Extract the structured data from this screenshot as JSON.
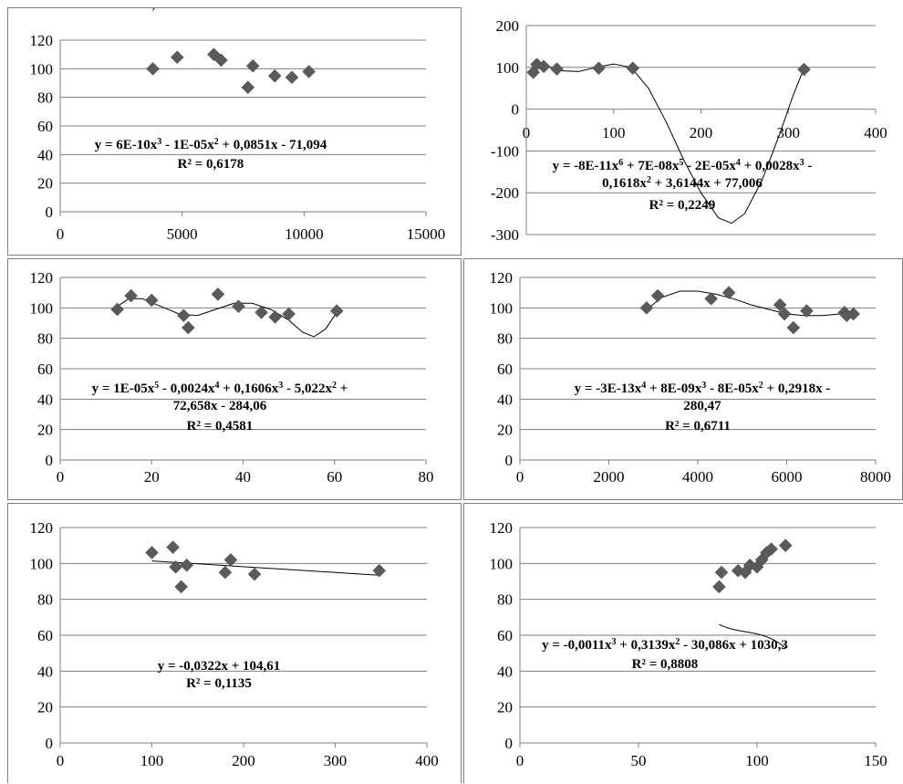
{
  "colors": {
    "marker": "#5a5a5a",
    "grid": "#7f7f7f",
    "trend": "#000000",
    "border": "#7f7f7f"
  },
  "chart_data": [
    {
      "type": "scatter",
      "title": "",
      "xlabel": "",
      "ylabel": "",
      "xlim": [
        0,
        15000
      ],
      "ylim": [
        0,
        120
      ],
      "xticks": [
        0,
        5000,
        10000,
        15000
      ],
      "yticks": [
        0,
        20,
        40,
        60,
        80,
        100,
        120
      ],
      "grid": true,
      "legend": "none",
      "series": [
        {
          "points": [
            [
              3800,
              100
            ],
            [
              4800,
              108
            ],
            [
              6300,
              110
            ],
            [
              6600,
              106
            ],
            [
              7700,
              87
            ],
            [
              7900,
              102
            ],
            [
              8800,
              95
            ],
            [
              9500,
              94
            ],
            [
              10200,
              98
            ]
          ]
        }
      ],
      "trendline": {
        "type": "polynomial",
        "coefficients": [
          -71.094,
          0.0851,
          -1e-05,
          6e-10
        ]
      },
      "equation_lines": [
        {
          "parts": [
            [
              "y = 6E-10x",
              ""
            ],
            [
              "3",
              "sup"
            ],
            [
              " - 1E-05x",
              ""
            ],
            [
              "2",
              "sup"
            ],
            [
              " + 0,0851x - 71,094",
              ""
            ]
          ]
        }
      ],
      "r2": "R² = 0,6178"
    },
    {
      "type": "scatter",
      "title": "",
      "xlabel": "",
      "ylabel": "",
      "xlim": [
        0,
        400
      ],
      "ylim": [
        -300,
        200
      ],
      "xticks": [
        0,
        100,
        200,
        300,
        400
      ],
      "yticks": [
        -300,
        -200,
        -100,
        0,
        100,
        200
      ],
      "grid": true,
      "legend": "none",
      "series": [
        {
          "points": [
            [
              8,
              88
            ],
            [
              12,
              107
            ],
            [
              20,
              102
            ],
            [
              35,
              96
            ],
            [
              83,
              98
            ],
            [
              122,
              98
            ],
            [
              318,
              95
            ]
          ]
        }
      ],
      "trendline": {
        "type": "polynomial-6",
        "shape_points": [
          [
            8,
            92
          ],
          [
            20,
            105
          ],
          [
            40,
            92
          ],
          [
            60,
            90
          ],
          [
            80,
            100
          ],
          [
            100,
            108
          ],
          [
            120,
            100
          ],
          [
            140,
            50
          ],
          [
            160,
            -30
          ],
          [
            180,
            -120
          ],
          [
            200,
            -200
          ],
          [
            220,
            -260
          ],
          [
            235,
            -273
          ],
          [
            250,
            -250
          ],
          [
            270,
            -170
          ],
          [
            290,
            -60
          ],
          [
            305,
            30
          ],
          [
            318,
            98
          ]
        ]
      },
      "equation_lines": [
        {
          "parts": [
            [
              "y = -8E-11x",
              ""
            ],
            [
              "6",
              "sup"
            ],
            [
              " + 7E-08x",
              ""
            ],
            [
              "5",
              "sup"
            ],
            [
              " - 2E-05x",
              ""
            ],
            [
              "4",
              "sup"
            ],
            [
              " + 0,0028x",
              ""
            ],
            [
              "3",
              "sup"
            ],
            [
              " -",
              ""
            ]
          ]
        },
        {
          "parts": [
            [
              "0,1618x",
              ""
            ],
            [
              "2",
              "sup"
            ],
            [
              " + 3,6144x + 77,006",
              ""
            ]
          ]
        }
      ],
      "r2": "R² = 0,2249"
    },
    {
      "type": "scatter",
      "title": "",
      "xlabel": "",
      "ylabel": "",
      "xlim": [
        0,
        80
      ],
      "ylim": [
        0,
        120
      ],
      "xticks": [
        0,
        20,
        40,
        60,
        80
      ],
      "yticks": [
        0,
        20,
        40,
        60,
        80,
        100,
        120
      ],
      "grid": true,
      "legend": "none",
      "series": [
        {
          "points": [
            [
              12.5,
              99
            ],
            [
              15.5,
              108
            ],
            [
              20,
              105
            ],
            [
              27,
              95
            ],
            [
              28,
              87
            ],
            [
              34.5,
              109
            ],
            [
              39,
              101
            ],
            [
              44,
              97
            ],
            [
              47,
              94
            ],
            [
              50,
              96
            ],
            [
              60.5,
              98
            ]
          ]
        }
      ],
      "trendline": {
        "type": "polynomial-5",
        "shape_points": [
          [
            12.5,
            101
          ],
          [
            15,
            106
          ],
          [
            18,
            106
          ],
          [
            22,
            101
          ],
          [
            26,
            96
          ],
          [
            30,
            95
          ],
          [
            34,
            99
          ],
          [
            38,
            103
          ],
          [
            42,
            103
          ],
          [
            46,
            99
          ],
          [
            50,
            92
          ],
          [
            53,
            84
          ],
          [
            55.5,
            81
          ],
          [
            58,
            86
          ],
          [
            60.5,
            97
          ]
        ]
      },
      "equation_lines": [
        {
          "parts": [
            [
              "y = 1E-05x",
              ""
            ],
            [
              "5",
              "sup"
            ],
            [
              " - 0,0024x",
              ""
            ],
            [
              "4",
              "sup"
            ],
            [
              " + 0,1606x",
              ""
            ],
            [
              "3",
              "sup"
            ],
            [
              " - 5,022x",
              ""
            ],
            [
              "2",
              "sup"
            ],
            [
              " +",
              ""
            ]
          ]
        },
        {
          "parts": [
            [
              "72,658x - 284,06",
              ""
            ]
          ]
        }
      ],
      "r2": "R² = 0,4581"
    },
    {
      "type": "scatter",
      "title": "",
      "xlabel": "",
      "ylabel": "",
      "xlim": [
        0,
        8000
      ],
      "ylim": [
        0,
        120
      ],
      "xticks": [
        0,
        2000,
        4000,
        6000,
        8000
      ],
      "yticks": [
        0,
        20,
        40,
        60,
        80,
        100,
        120
      ],
      "grid": true,
      "legend": "none",
      "series": [
        {
          "points": [
            [
              2850,
              100
            ],
            [
              3100,
              108
            ],
            [
              4300,
              106
            ],
            [
              4700,
              110
            ],
            [
              5850,
              102
            ],
            [
              5950,
              96
            ],
            [
              6150,
              87
            ],
            [
              6450,
              98
            ],
            [
              7300,
              97
            ],
            [
              7350,
              95
            ],
            [
              7500,
              96
            ]
          ]
        }
      ],
      "trendline": {
        "type": "polynomial-4",
        "shape_points": [
          [
            2850,
            99
          ],
          [
            3200,
            107
          ],
          [
            3600,
            111
          ],
          [
            4000,
            111
          ],
          [
            4400,
            109
          ],
          [
            4800,
            106
          ],
          [
            5200,
            102
          ],
          [
            5600,
            99
          ],
          [
            6000,
            96
          ],
          [
            6400,
            95
          ],
          [
            6800,
            95
          ],
          [
            7200,
            96
          ],
          [
            7500,
            98
          ]
        ]
      },
      "equation_lines": [
        {
          "parts": [
            [
              "y = -3E-13x",
              ""
            ],
            [
              "4",
              "sup"
            ],
            [
              " + 8E-09x",
              ""
            ],
            [
              "3",
              "sup"
            ],
            [
              " - 8E-05x",
              ""
            ],
            [
              "2",
              "sup"
            ],
            [
              " + 0,2918x -",
              ""
            ]
          ]
        },
        {
          "parts": [
            [
              "280,47",
              ""
            ]
          ]
        }
      ],
      "r2": "R² = 0,6711"
    },
    {
      "type": "scatter",
      "title": "",
      "xlabel": "",
      "ylabel": "",
      "xlim": [
        0,
        400
      ],
      "ylim": [
        0,
        120
      ],
      "xticks": [
        0,
        100,
        200,
        300,
        400
      ],
      "yticks": [
        0,
        20,
        40,
        60,
        80,
        100,
        120
      ],
      "grid": true,
      "legend": "none",
      "series": [
        {
          "points": [
            [
              100,
              106
            ],
            [
              123,
              109
            ],
            [
              126,
              98
            ],
            [
              132,
              87
            ],
            [
              138,
              99
            ],
            [
              180,
              95
            ],
            [
              186,
              102
            ],
            [
              212,
              94
            ],
            [
              348,
              96
            ]
          ]
        }
      ],
      "trendline": {
        "type": "linear",
        "slope": -0.0322,
        "intercept": 104.61,
        "x_range": [
          100,
          348
        ]
      },
      "equation_lines": [
        {
          "parts": [
            [
              "y = -0,0322x + 104,61",
              ""
            ]
          ]
        }
      ],
      "r2": "R² = 0,1135"
    },
    {
      "type": "scatter",
      "title": "",
      "xlabel": "",
      "ylabel": "",
      "xlim": [
        0,
        150
      ],
      "ylim": [
        0,
        120
      ],
      "xticks": [
        0,
        50,
        100,
        150
      ],
      "yticks": [
        0,
        20,
        40,
        60,
        80,
        100,
        120
      ],
      "grid": true,
      "legend": "none",
      "series": [
        {
          "points": [
            [
              84,
              87
            ],
            [
              85,
              95
            ],
            [
              92,
              96
            ],
            [
              95,
              95
            ],
            [
              97,
              99
            ],
            [
              100,
              98
            ],
            [
              102,
              102
            ],
            [
              104,
              106
            ],
            [
              106,
              108
            ],
            [
              112,
              110
            ]
          ]
        }
      ],
      "trendline": {
        "type": "polynomial",
        "coefficients": [
          1030.3,
          -30.086,
          0.3139,
          -0.0011
        ],
        "x_range": [
          84,
          112
        ]
      },
      "equation_lines": [
        {
          "parts": [
            [
              "y = -0,0011x",
              ""
            ],
            [
              "3",
              "sup"
            ],
            [
              " + 0,3139x",
              ""
            ],
            [
              "2",
              "sup"
            ],
            [
              " - 30,086x + 1030,3",
              ""
            ]
          ]
        }
      ],
      "r2": "R² = 0,8808"
    }
  ]
}
